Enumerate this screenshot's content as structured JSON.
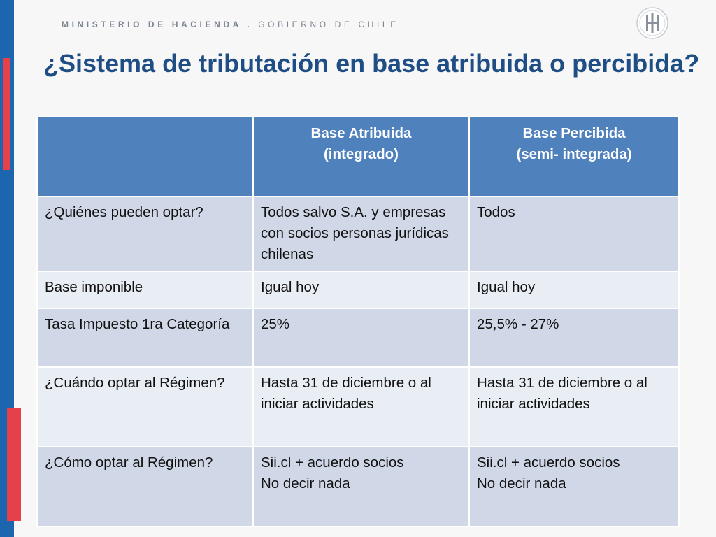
{
  "header": {
    "ministry": "MINISTERIO DE HACIENDA .",
    "government": "GOBIERNO DE CHILE"
  },
  "title": "¿Sistema de tributación en base atribuida o percibida?",
  "table": {
    "headers": [
      "",
      "Base Atribuida\n(integrado)",
      "Base Percibida\n(semi- integrada)"
    ],
    "rows": [
      [
        "¿Quiénes pueden optar?",
        "Todos salvo S.A. y empresas con socios personas jurídicas chilenas",
        "Todos"
      ],
      [
        "Base imponible",
        "Igual hoy",
        "Igual hoy"
      ],
      [
        "Tasa Impuesto 1ra Categoría",
        "25%",
        "25,5% - 27%"
      ],
      [
        "¿Cuándo  optar al Régimen?",
        "Hasta 31 de diciembre o al iniciar actividades",
        "Hasta 31 de diciembre o al iniciar actividades"
      ],
      [
        "¿Cómo optar al Régimen?",
        "Sii.cl + acuerdo socios\nNo decir nada",
        "Sii.cl + acuerdo socios\nNo decir nada"
      ]
    ]
  },
  "colors": {
    "header_blue": "#4f81bd",
    "row_dark": "#d0d8e8",
    "row_light": "#e9edf4",
    "title_blue": "#1f4e85",
    "stripe_blue": "#1c66b0",
    "stripe_red": "#e6414a"
  },
  "icons": {
    "logo": "ministerio-hacienda-seal-icon"
  }
}
